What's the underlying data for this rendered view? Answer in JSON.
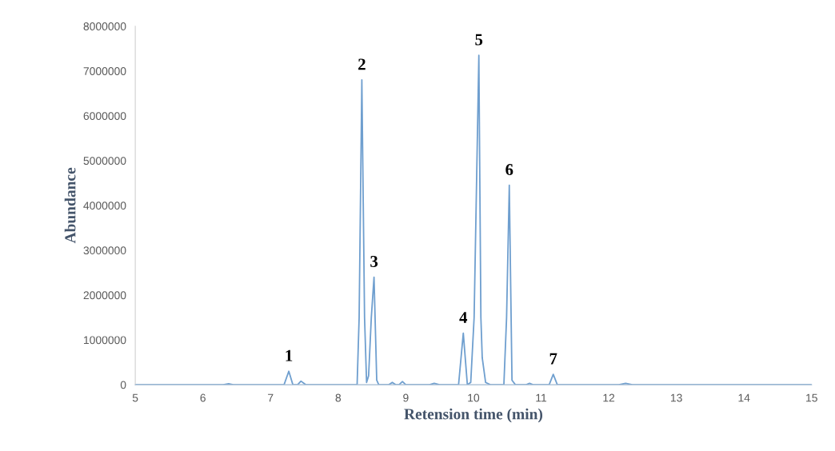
{
  "chart_data": {
    "type": "line",
    "xlabel": "Retension time (min)",
    "ylabel": "Abundance",
    "series": [
      {
        "color": "#6f9fcf",
        "x": [
          5,
          6.3,
          6.38,
          6.45,
          7.2,
          7.27,
          7.33,
          7.4,
          7.45,
          7.52,
          8.28,
          8.31,
          8.35,
          8.39,
          8.42,
          8.45,
          8.49,
          8.53,
          8.57,
          8.6,
          8.75,
          8.8,
          8.85,
          8.9,
          8.95,
          9.0,
          9.35,
          9.42,
          9.5,
          9.78,
          9.85,
          9.91,
          9.96,
          10.01,
          10.04,
          10.08,
          10.11,
          10.13,
          10.18,
          10.25,
          10.45,
          10.49,
          10.53,
          10.57,
          10.62,
          10.78,
          10.83,
          10.88,
          11.12,
          11.18,
          11.24,
          12.15,
          12.25,
          12.35,
          15
        ],
        "values": [
          0,
          0,
          20000,
          0,
          0,
          300000,
          0,
          0,
          80000,
          0,
          0,
          1500000,
          6800000,
          1500000,
          50000,
          200000,
          1500000,
          2400000,
          100000,
          0,
          0,
          50000,
          0,
          0,
          70000,
          0,
          0,
          30000,
          0,
          0,
          1150000,
          0,
          50000,
          1500000,
          4000000,
          7350000,
          1500000,
          600000,
          50000,
          0,
          0,
          1500000,
          4450000,
          100000,
          0,
          0,
          30000,
          0,
          0,
          230000,
          0,
          0,
          30000,
          0,
          0
        ]
      }
    ],
    "xlim": [
      5,
      15
    ],
    "ylim": [
      0,
      8000000
    ],
    "xticks": [
      5,
      6,
      7,
      8,
      9,
      10,
      11,
      12,
      13,
      14,
      15
    ],
    "yticks": [
      0,
      1000000,
      2000000,
      3000000,
      4000000,
      5000000,
      6000000,
      7000000,
      8000000
    ],
    "annotations": [
      {
        "text": "1",
        "x": 7.27,
        "y": 300000
      },
      {
        "text": "2",
        "x": 8.35,
        "y": 6800000
      },
      {
        "text": "3",
        "x": 8.53,
        "y": 2400000
      },
      {
        "text": "4",
        "x": 9.85,
        "y": 1150000
      },
      {
        "text": "5",
        "x": 10.08,
        "y": 7350000
      },
      {
        "text": "6",
        "x": 10.53,
        "y": 4450000
      },
      {
        "text": "7",
        "x": 11.18,
        "y": 230000
      }
    ],
    "grid": false,
    "legend": false,
    "marker": "none",
    "line_style": "solid"
  }
}
